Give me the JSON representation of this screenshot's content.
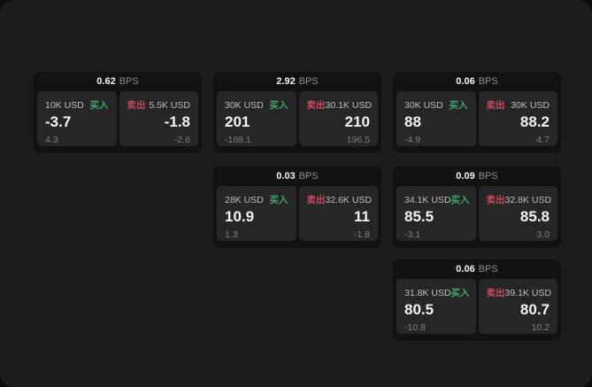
{
  "labels": {
    "bps_unit": "BPS",
    "buy": "买入",
    "sell": "卖出"
  },
  "colors": {
    "buy_accent": "#3fa56b",
    "sell_accent": "#c9485f",
    "frame_bg": "#1c1c1c",
    "card_bg": "#121212",
    "tile_bg": "#262626"
  },
  "cards": [
    {
      "bps": "0.62",
      "buy": {
        "amount": "10K USD",
        "price": "-3.7",
        "delta": "4.3"
      },
      "sell": {
        "amount": "5.5K USD",
        "price": "-1.8",
        "delta": "-2.6"
      }
    },
    {
      "bps": "2.92",
      "buy": {
        "amount": "30K USD",
        "price": "201",
        "delta": "-188.1"
      },
      "sell": {
        "amount": "30.1K USD",
        "price": "210",
        "delta": "196.5"
      }
    },
    {
      "bps": "0.06",
      "buy": {
        "amount": "30K USD",
        "price": "88",
        "delta": "-4.9"
      },
      "sell": {
        "amount": "30K USD",
        "price": "88.2",
        "delta": "4.7"
      }
    },
    {
      "bps": "0.03",
      "buy": {
        "amount": "28K USD",
        "price": "10.9",
        "delta": "1.3"
      },
      "sell": {
        "amount": "32.6K USD",
        "price": "11",
        "delta": "-1.8"
      }
    },
    {
      "bps": "0.09",
      "buy": {
        "amount": "34.1K USD",
        "price": "85.5",
        "delta": "-3.1"
      },
      "sell": {
        "amount": "32.8K USD",
        "price": "85.8",
        "delta": "3.0"
      }
    },
    {
      "bps": "0.06",
      "buy": {
        "amount": "31.8K USD",
        "price": "80.5",
        "delta": "-10.8"
      },
      "sell": {
        "amount": "39.1K USD",
        "price": "80.7",
        "delta": "10.2"
      }
    }
  ]
}
